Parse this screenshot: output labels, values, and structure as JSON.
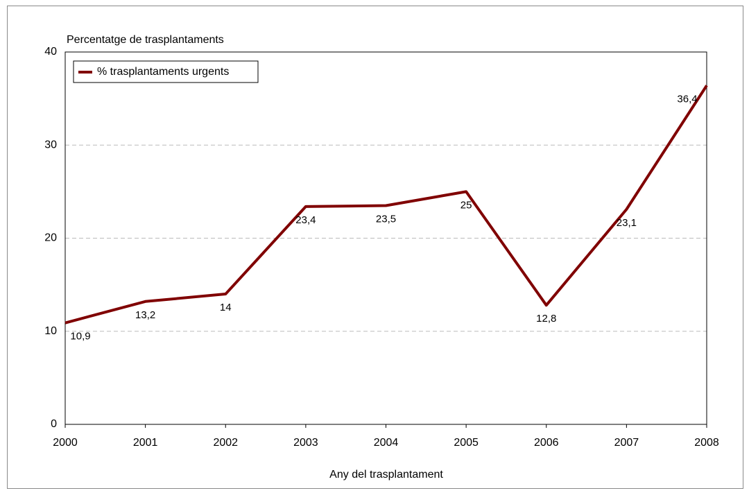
{
  "chart_data": {
    "type": "line",
    "y_axis_label": "Percentatge de trasplantaments",
    "x_axis_label": "Any del trasplantament",
    "x": [
      2000,
      2001,
      2002,
      2003,
      2004,
      2005,
      2006,
      2007,
      2008
    ],
    "series": [
      {
        "name": "% trasplantaments urgents",
        "color": "#800000",
        "values": [
          10.9,
          13.2,
          14,
          23.4,
          23.5,
          25,
          12.8,
          23.1,
          36.4
        ],
        "value_labels": [
          "10,9",
          "13,2",
          "14",
          "23,4",
          "23,5",
          "25",
          "12,8",
          "23,1",
          "36,4"
        ]
      }
    ],
    "xlim": [
      2000,
      2008
    ],
    "xticks": [
      2000,
      2001,
      2002,
      2003,
      2004,
      2005,
      2006,
      2007,
      2008
    ],
    "ylim": [
      0,
      40
    ],
    "yticks": [
      0,
      10,
      20,
      30,
      40
    ],
    "grid": true,
    "legend": "top-left"
  }
}
